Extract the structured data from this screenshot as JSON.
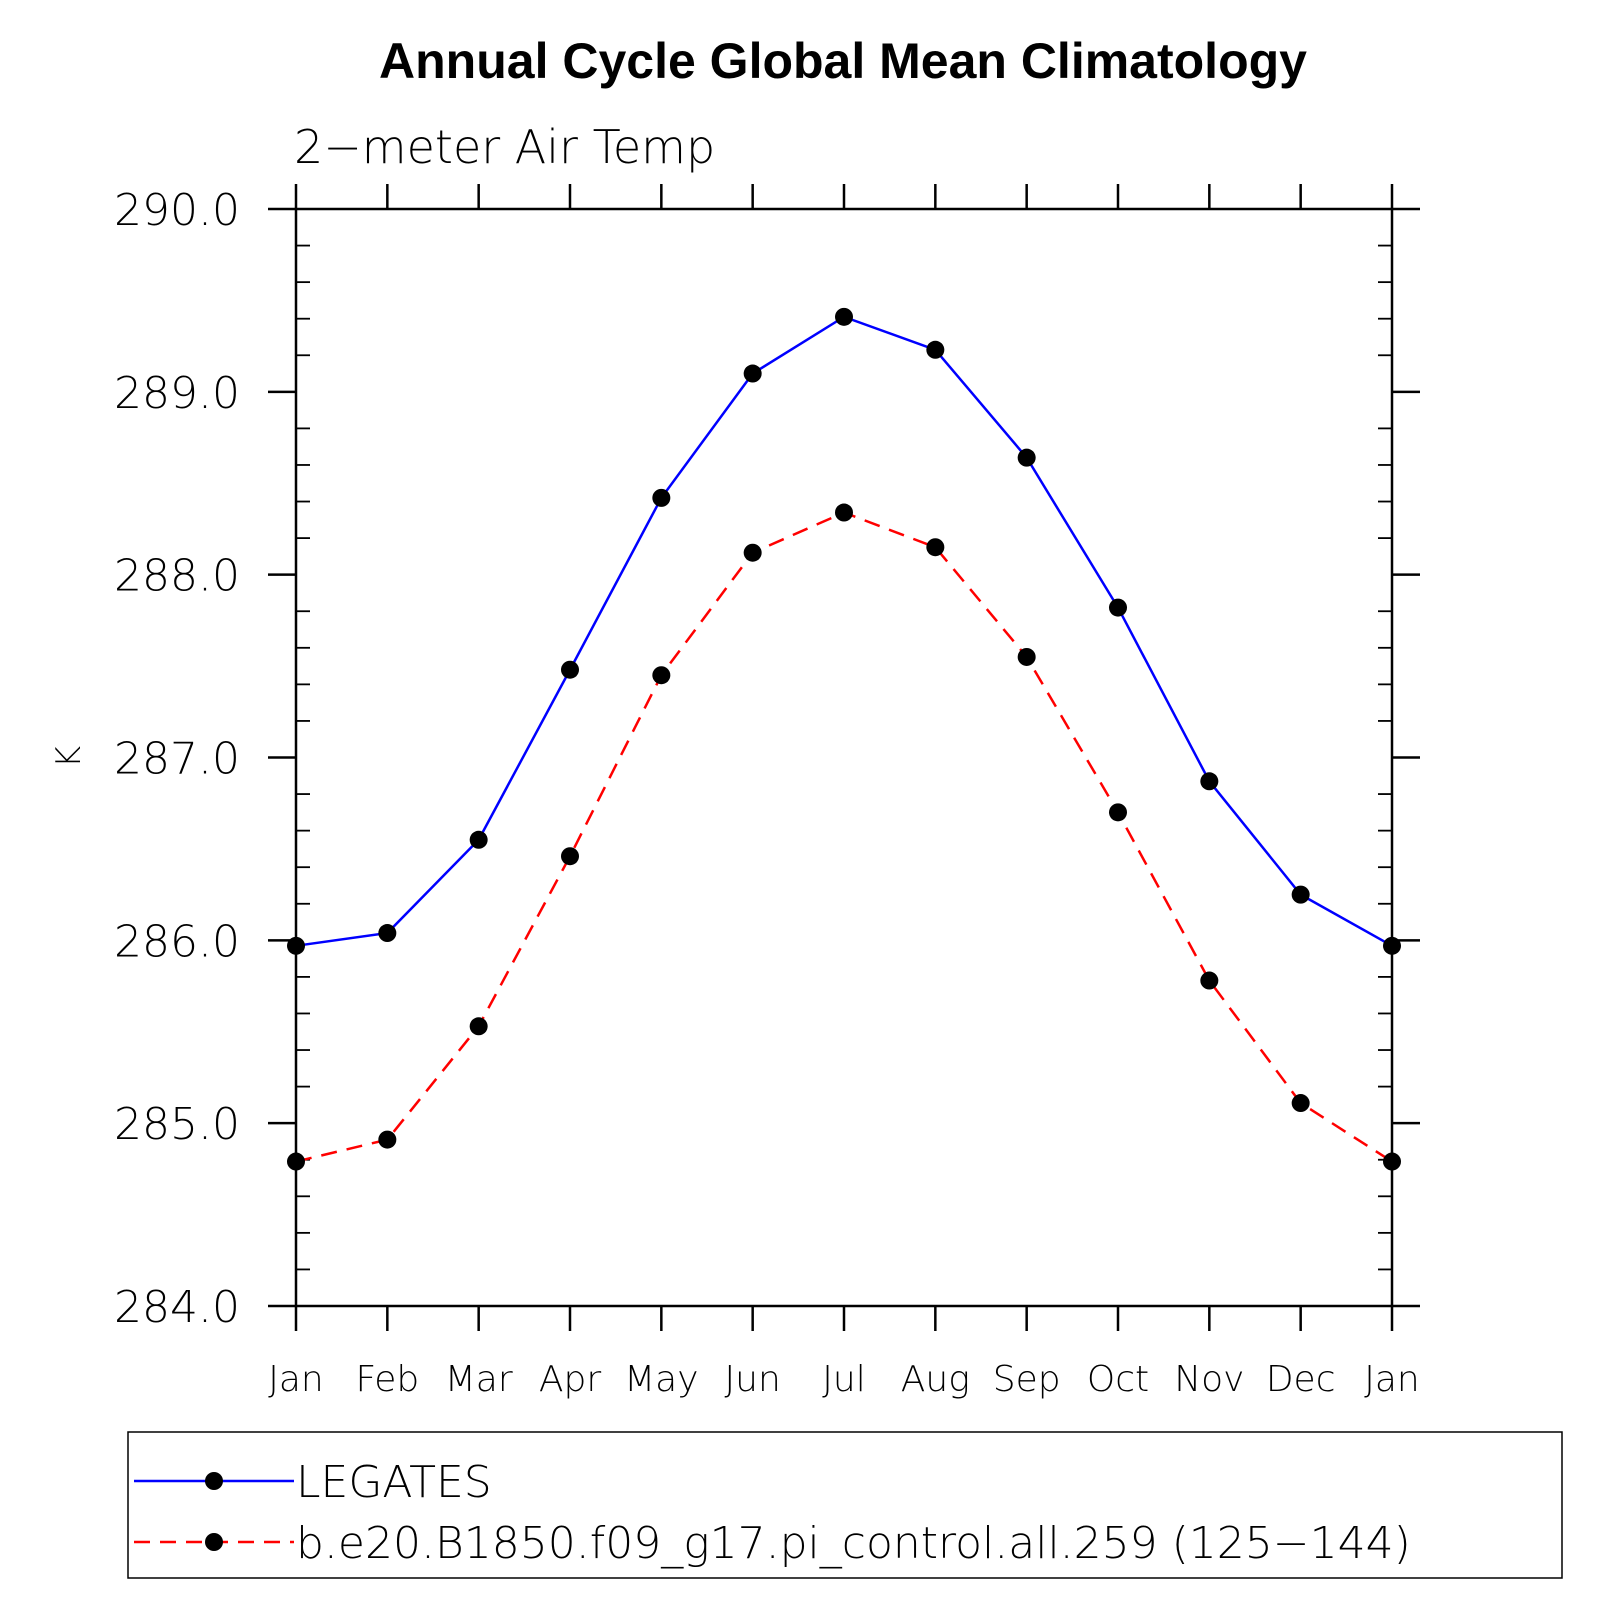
{
  "chart_data": {
    "type": "line",
    "title": "Annual Cycle Global Mean Climatology",
    "subtitle": "2−meter Air Temp",
    "xlabel": "",
    "ylabel": "K",
    "categories": [
      "Jan",
      "Feb",
      "Mar",
      "Apr",
      "May",
      "Jun",
      "Jul",
      "Aug",
      "Sep",
      "Oct",
      "Nov",
      "Dec",
      "Jan"
    ],
    "ylim": [
      284.0,
      290.0
    ],
    "yticks": [
      "290.0",
      "289.0",
      "288.0",
      "287.0",
      "286.0",
      "285.0",
      "284.0"
    ],
    "grid": false,
    "legend_position": "bottom",
    "series": [
      {
        "name": "LEGATES",
        "color": "#0000ff",
        "line_style": "solid",
        "marker": "filled-circle",
        "values": [
          285.97,
          286.04,
          286.55,
          287.48,
          288.42,
          289.1,
          289.41,
          289.23,
          288.64,
          287.82,
          286.87,
          286.25,
          285.97
        ]
      },
      {
        "name": "b.e20.B1850.f09_g17.pi_control.all.259 (125−144)",
        "color": "#ff0000",
        "line_style": "dashed",
        "marker": "filled-circle",
        "values": [
          284.79,
          284.91,
          285.53,
          286.46,
          287.45,
          288.12,
          288.34,
          288.15,
          287.55,
          286.7,
          285.78,
          285.11,
          284.79
        ]
      }
    ]
  }
}
